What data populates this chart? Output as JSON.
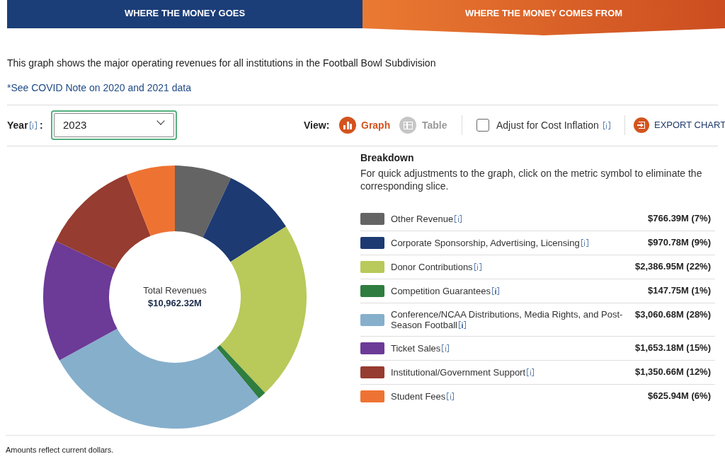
{
  "chart_data": {
    "type": "donut",
    "title": "This graph shows the major operating revenues for all institutions in the Football Bowl Subdivision",
    "subtitle": "*See COVID Note on 2020 and 2021 data",
    "legend_title": "Breakdown",
    "categories": [
      "Other Revenue",
      "Corporate Sponsorship, Advertising, Licensing",
      "Donor Contributions",
      "Competition Guarantees",
      "Conference/NCAA Distributions, Media Rights, and Post-Season Football",
      "Ticket Sales",
      "Institutional/Government Support",
      "Student Fees"
    ],
    "values": [
      7,
      9,
      22,
      1,
      28,
      15,
      12,
      6
    ],
    "colors": [
      "#646464",
      "#1d3a72",
      "#b9c95a",
      "#2f7d3f",
      "#86afcc",
      "#6c3a97",
      "#963c30",
      "#ee7332"
    ],
    "value_labels": [
      "$766.39M (7%)",
      "$970.78M (9%)",
      "$2,386.95M (22%)",
      "$147.75M (1%)",
      "$3,060.68M (28%)",
      "$1,653.18M (15%)",
      "$1,350.66M (12%)",
      "$625.94M (6%)"
    ],
    "legend": "right",
    "annotations": [
      "WHERE THE MONEY GOES",
      "WHERE THE MONEY COMES FROM",
      "Year",
      ":",
      "2023",
      "View:",
      "Graph",
      "Table",
      "Adjust for Cost Inflation",
      "EXPORT CHART",
      "For quick adjustments to the graph, click on the metric symbol to eliminate the corresponding slice.",
      "Total Revenues",
      "$10,962.32M",
      "Amounts reflect current dollars."
    ]
  }
}
